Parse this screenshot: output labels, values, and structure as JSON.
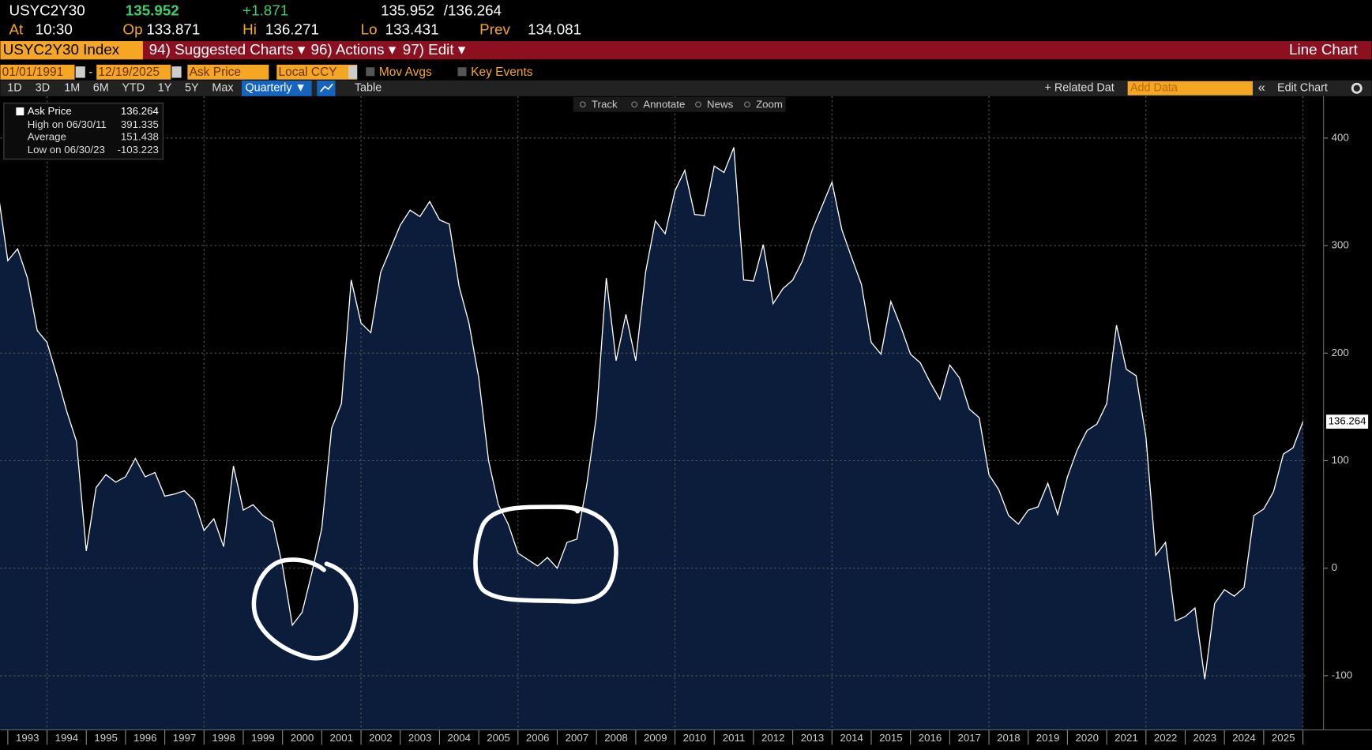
{
  "header": {
    "ticker": "USYC2Y30",
    "last": "135.952",
    "change": "+1.871",
    "bid": "135.952",
    "ask": "/136.264",
    "at_label": "At",
    "at": "10:30",
    "op_label": "Op",
    "op": "133.871",
    "hi_label": "Hi",
    "hi": "136.271",
    "lo_label": "Lo",
    "lo": "133.431",
    "prev_label": "Prev",
    "prev": "134.081"
  },
  "toolbar": {
    "security": "USYC2Y30 Index",
    "menus": [
      "94) Suggested Charts ▾",
      "96) Actions ▾",
      "97) Edit ▾"
    ],
    "chart_type": "Line Chart"
  },
  "settings": {
    "start": "01/01/1991",
    "sep": "-",
    "end": "12/19/2025",
    "field": "Ask Price",
    "currency": "Local CCY",
    "mov_avgs": "Mov Avgs",
    "key_events": "Key Events"
  },
  "periods": [
    "1D",
    "3D",
    "1M",
    "6M",
    "YTD",
    "1Y",
    "5Y",
    "Max"
  ],
  "frequency": "Quarterly ▼",
  "table": "Table",
  "related": "+ Related Dat",
  "add_data": "Add Data",
  "collapse": "«",
  "edit_chart": "Edit Chart",
  "chart_tools": [
    "Track",
    "Annotate",
    "News",
    "Zoom"
  ],
  "chart_data": {
    "type": "area",
    "x": [
      1992.75,
      1993,
      1993.25,
      1993.5,
      1993.75,
      1994,
      1994.25,
      1994.5,
      1994.75,
      1995,
      1995.25,
      1995.5,
      1995.75,
      1996,
      1996.25,
      1996.5,
      1996.75,
      1997,
      1997.25,
      1997.5,
      1997.75,
      1998,
      1998.25,
      1998.5,
      1998.75,
      1999,
      1999.25,
      1999.5,
      1999.75,
      2000,
      2000.25,
      2000.5,
      2000.75,
      2001,
      2001.25,
      2001.5,
      2001.75,
      2002,
      2002.25,
      2002.5,
      2002.75,
      2003,
      2003.25,
      2003.5,
      2003.75,
      2004,
      2004.25,
      2004.5,
      2004.75,
      2005,
      2005.25,
      2005.5,
      2005.75,
      2006,
      2006.25,
      2006.5,
      2006.75,
      2007,
      2007.25,
      2007.5,
      2007.75,
      2008,
      2008.25,
      2008.5,
      2008.75,
      2009,
      2009.25,
      2009.5,
      2009.75,
      2010,
      2010.25,
      2010.5,
      2010.75,
      2011,
      2011.25,
      2011.5,
      2011.75,
      2012,
      2012.25,
      2012.5,
      2012.75,
      2013,
      2013.25,
      2013.5,
      2013.75,
      2014,
      2014.25,
      2014.5,
      2014.75,
      2015,
      2015.25,
      2015.5,
      2015.75,
      2016,
      2016.25,
      2016.5,
      2016.75,
      2017,
      2017.25,
      2017.5,
      2017.75,
      2018,
      2018.25,
      2018.5,
      2018.75,
      2019,
      2019.25,
      2019.5,
      2019.75,
      2020,
      2020.25,
      2020.5,
      2020.75,
      2021,
      2021.25,
      2021.5,
      2021.75,
      2022,
      2022.25,
      2022.5,
      2022.75,
      2023,
      2023.25,
      2023.5,
      2023.75,
      2024,
      2024.25,
      2024.5,
      2024.75,
      2025,
      2025.25,
      2025.5,
      2025.75,
      2026
    ],
    "series": [
      {
        "name": "Ask Price",
        "color": "#ffffff",
        "fill": "#0b1d3a",
        "values": [
          350,
          286,
          297,
          270,
          221,
          210,
          179,
          146,
          118,
          16,
          75,
          87,
          80,
          85,
          102,
          85,
          89,
          67,
          69,
          72,
          63,
          35,
          46,
          20,
          95,
          54,
          59,
          49,
          43,
          2,
          -53,
          -41,
          -4,
          37,
          130,
          153,
          268,
          228,
          219,
          275,
          297,
          319,
          333,
          327,
          341,
          324,
          320,
          262,
          228,
          177,
          100,
          59,
          41,
          14,
          8,
          2,
          10,
          0,
          24,
          27,
          77,
          142,
          270,
          193,
          236,
          193,
          275,
          323,
          311,
          351,
          370,
          329,
          328,
          374,
          368,
          391.335,
          268,
          267,
          301,
          246,
          260,
          268,
          286,
          315,
          337,
          359,
          315,
          289,
          264,
          210,
          199,
          248,
          225,
          199,
          191,
          173,
          157,
          189,
          177,
          148,
          140,
          87,
          73,
          49,
          41,
          54,
          57,
          79,
          50,
          85,
          110,
          128,
          134,
          153,
          226,
          185,
          179,
          122,
          12,
          24,
          -49,
          -45,
          -37,
          -103.223,
          -33,
          -20,
          -26,
          -18,
          49,
          55,
          71,
          106,
          112,
          136.264
        ]
      }
    ],
    "legend": [
      {
        "label": "High on 06/30/11",
        "value": 391.335
      },
      {
        "label": "Average",
        "value": 151.438
      },
      {
        "label": "Low on 06/30/23",
        "value": -103.223
      }
    ],
    "xlim": [
      1992.81,
      2026.08
    ],
    "xticks": [
      1993,
      1994,
      1995,
      1996,
      1997,
      1998,
      1999,
      2000,
      2001,
      2002,
      2003,
      2004,
      2005,
      2006,
      2007,
      2008,
      2009,
      2010,
      2011,
      2012,
      2013,
      2014,
      2015,
      2016,
      2017,
      2018,
      2019,
      2020,
      2021,
      2022,
      2023,
      2024,
      2025,
      2026
    ],
    "year_labels": [
      "1993",
      "1994",
      "1995",
      "1996",
      "1997",
      "1998",
      "1999",
      "2000",
      "2001",
      "2002",
      "2003",
      "2004",
      "2005",
      "2006",
      "2007",
      "2008",
      "2009",
      "2010",
      "2011",
      "2012",
      "2013",
      "2014",
      "2015",
      "2016",
      "2017",
      "2018",
      "2019",
      "2020",
      "2021",
      "2022",
      "2023",
      "2024",
      "2025"
    ],
    "xgrid": [
      1994,
      1998,
      2002,
      2006,
      2010,
      2014,
      2018,
      2022,
      2026
    ],
    "ylim": [
      -150.4,
      439
    ],
    "yticks": [
      -100,
      0,
      100,
      200,
      300,
      400
    ],
    "grid": true
  }
}
